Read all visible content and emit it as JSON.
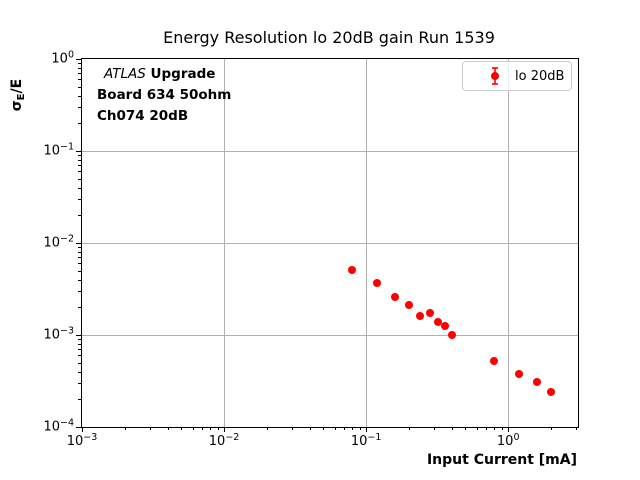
{
  "figure": {
    "background": "#ffffff"
  },
  "chart_data": {
    "type": "scatter",
    "title": "Energy Resolution lo 20dB gain Run 1539",
    "xlabel": "Input Current [mA]",
    "ylabel": {
      "symbol": "σ",
      "subscript": "E",
      "suffix": "/E",
      "text": "σE/E"
    },
    "x_scale": "log",
    "y_scale": "log",
    "xlim": [
      0.001,
      3.1
    ],
    "ylim": [
      0.0001,
      1.0
    ],
    "x_tick_exponents": [
      -3,
      -2,
      -1,
      0
    ],
    "y_tick_exponents": [
      0,
      -1,
      -2,
      -3,
      -4
    ],
    "minor_ticks": "log-decades-2-to-9",
    "grid": "major-only",
    "grid_color": "#b0b0b0",
    "series": [
      {
        "name": "lo 20dB",
        "color": "#ff0000",
        "marker": "filled-circle-with-errorbar",
        "points": [
          {
            "x": 0.08,
            "y": 0.0051
          },
          {
            "x": 0.12,
            "y": 0.0037
          },
          {
            "x": 0.16,
            "y": 0.0026
          },
          {
            "x": 0.2,
            "y": 0.0021
          },
          {
            "x": 0.24,
            "y": 0.0016
          },
          {
            "x": 0.28,
            "y": 0.00172
          },
          {
            "x": 0.32,
            "y": 0.00138
          },
          {
            "x": 0.36,
            "y": 0.00125
          },
          {
            "x": 0.4,
            "y": 0.001
          },
          {
            "x": 0.8,
            "y": 0.00052
          },
          {
            "x": 1.2,
            "y": 0.00038
          },
          {
            "x": 1.6,
            "y": 0.00031
          },
          {
            "x": 2.0,
            "y": 0.00024
          }
        ]
      }
    ],
    "legend": {
      "label": "lo 20dB",
      "position": "upper-right"
    },
    "annotation": {
      "line1_italic": "ATLAS",
      "line1_bold": " Upgrade",
      "line2": "Board 634 50ohm",
      "line3": "Ch074 20dB"
    }
  }
}
